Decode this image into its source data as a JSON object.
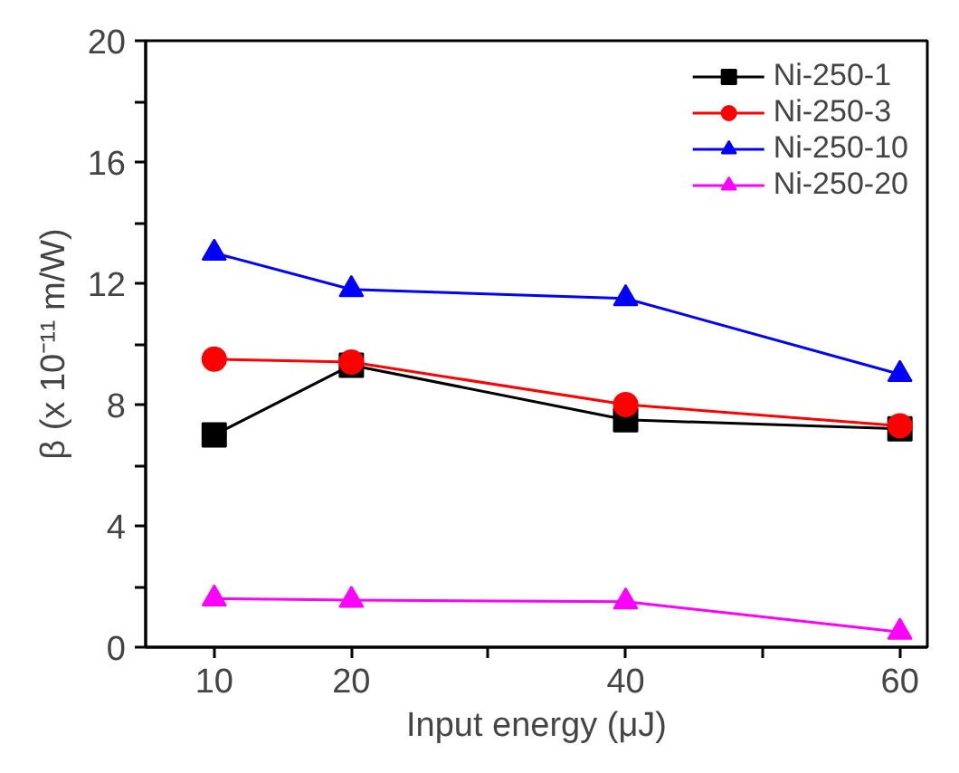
{
  "chart_data": {
    "type": "line",
    "xlabel": "Input energy (μJ)",
    "ylabel": "β (x 10⁻¹¹ m/W)",
    "x": [
      10,
      20,
      40,
      60
    ],
    "series": [
      {
        "name": "Ni-250-1",
        "color": "#000000",
        "marker": "square",
        "values": [
          7.0,
          9.3,
          7.5,
          7.2
        ]
      },
      {
        "name": "Ni-250-3",
        "color": "#ff0000",
        "marker": "circle",
        "values": [
          9.5,
          9.4,
          8.0,
          7.3
        ]
      },
      {
        "name": "Ni-250-10",
        "color": "#0000ff",
        "marker": "triangle",
        "values": [
          13.0,
          11.8,
          11.5,
          9.0
        ]
      },
      {
        "name": "Ni-250-20",
        "color": "#ff00ff",
        "marker": "triangle",
        "values": [
          1.6,
          1.55,
          1.5,
          0.5
        ]
      }
    ],
    "xlim": [
      5,
      62
    ],
    "ylim": [
      0,
      20
    ],
    "xticks": [
      10,
      20,
      {
        "value": 30,
        "label": null
      },
      40,
      {
        "value": 50,
        "label": null
      },
      60
    ],
    "yticks": [
      0,
      {
        "value": 2,
        "label": null
      },
      4,
      {
        "value": 6,
        "label": null
      },
      8,
      {
        "value": 10,
        "label": null
      },
      12,
      {
        "value": 14,
        "label": null
      },
      16,
      {
        "value": 18,
        "label": null
      },
      20
    ],
    "grid": false,
    "legend": "top right",
    "line_style": "solid"
  }
}
